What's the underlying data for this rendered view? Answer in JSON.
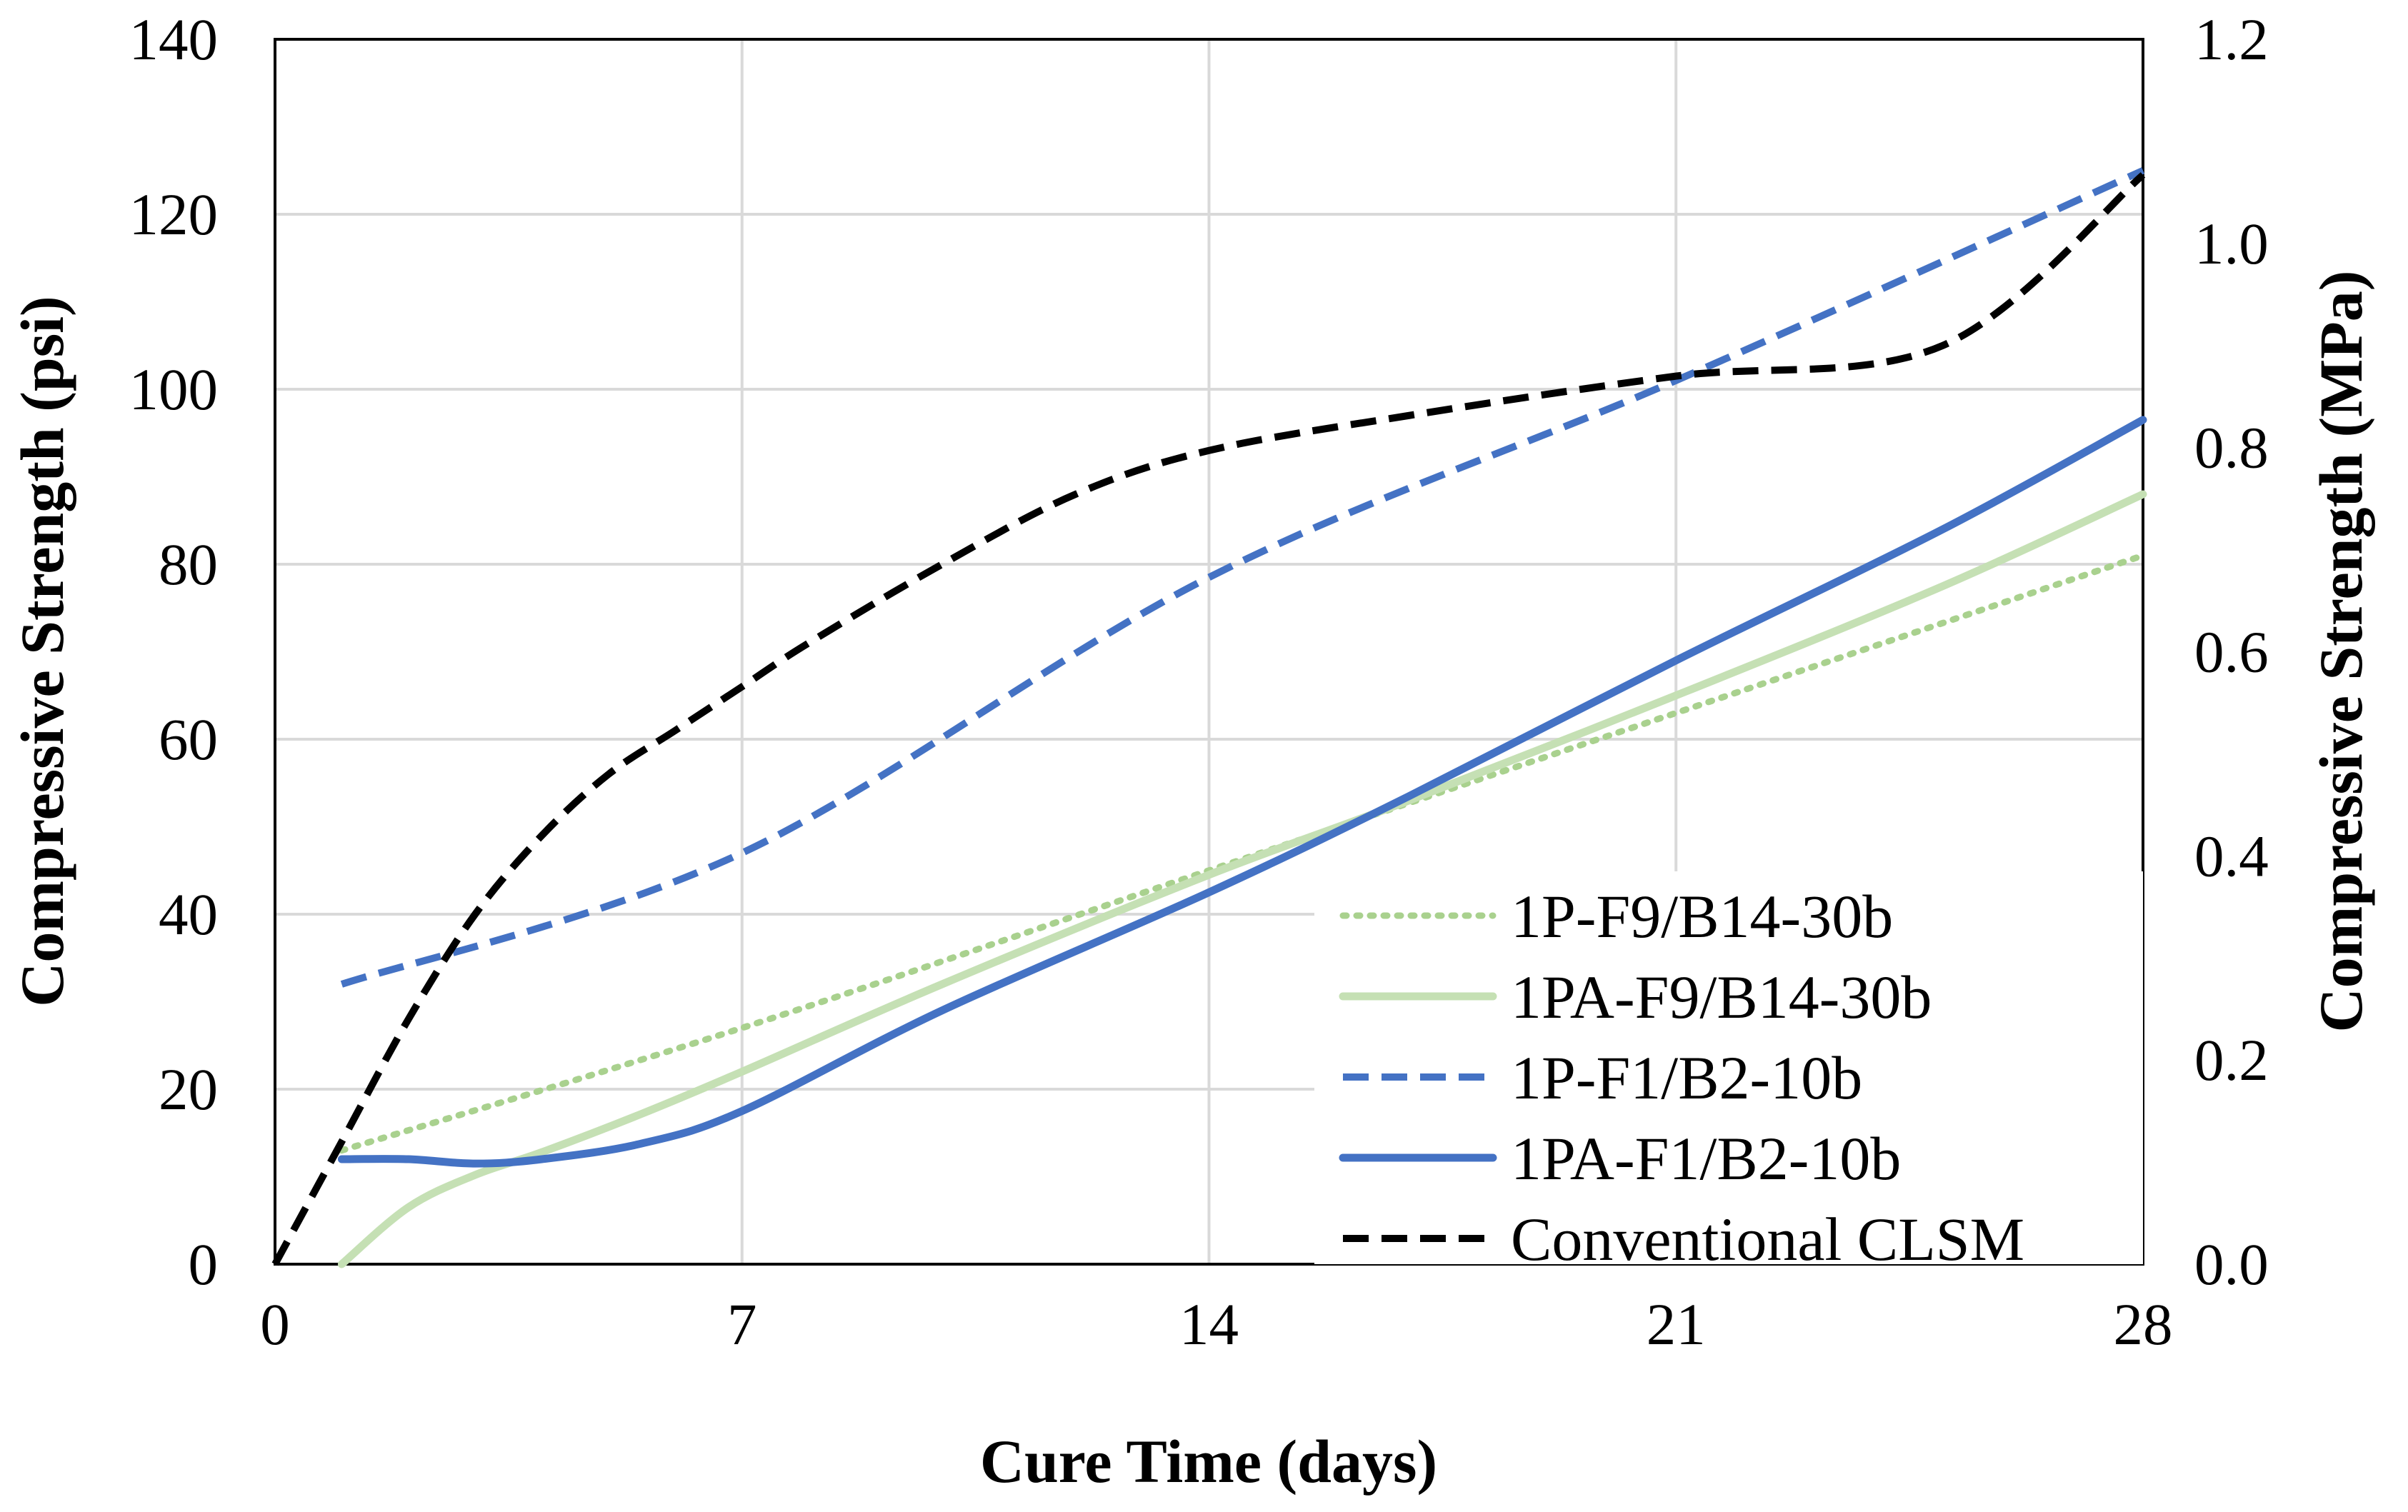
{
  "chart_data": {
    "type": "line",
    "title": "",
    "xlabel": "Cure Time (days)",
    "ylabel": "Compressive Strength (psi)",
    "y2label": "Compressive Strength (MPa)",
    "xlim": [
      0,
      28
    ],
    "ylim": [
      0,
      140
    ],
    "y2lim": [
      0.0,
      1.2
    ],
    "xticks": [
      "0",
      "7",
      "14",
      "21",
      "28"
    ],
    "yticks": [
      "0",
      "20",
      "40",
      "60",
      "80",
      "100",
      "120",
      "140"
    ],
    "y2ticks": [
      "0.0",
      "0.2",
      "0.4",
      "0.6",
      "0.8",
      "1.0",
      "1.2"
    ],
    "grid": true,
    "legend_position": "bottom-right",
    "series": [
      {
        "name": "1P-F9/B14-30b",
        "color": "#A9D18E",
        "style": "dotted",
        "x": [
          1,
          7,
          14,
          21,
          28
        ],
        "y": [
          13,
          27,
          45,
          63,
          81
        ]
      },
      {
        "name": "1PA-F9/B14-30b",
        "color": "#C5E0B4",
        "style": "solid",
        "x": [
          1,
          2,
          3,
          4,
          5.5,
          7,
          10,
          14,
          17,
          21,
          25,
          28
        ],
        "y": [
          0,
          6.5,
          10.2,
          12.8,
          17.2,
          22,
          32,
          44.5,
          53,
          65,
          77.5,
          88
        ]
      },
      {
        "name": "1P-F1/B2-10b",
        "color": "#4472C4",
        "style": "dashed",
        "x": [
          1,
          7,
          14,
          21,
          28
        ],
        "y": [
          32,
          47,
          78.5,
          101,
          125
        ]
      },
      {
        "name": "1PA-F1/B2-10b",
        "color": "#4472C4",
        "style": "solid",
        "x": [
          1,
          2,
          3,
          4,
          5.5,
          7,
          10,
          14,
          17,
          21,
          25,
          28
        ],
        "y": [
          12,
          12,
          11.5,
          12,
          13.8,
          17.5,
          29,
          42.5,
          53.5,
          69,
          84,
          96.5
        ]
      },
      {
        "name": "Conventional CLSM",
        "color": "#000000",
        "style": "dashed",
        "x": [
          0,
          1,
          2,
          3,
          4,
          5,
          6,
          7,
          8,
          10,
          12,
          14,
          17,
          21,
          25,
          28
        ],
        "y": [
          0,
          14,
          28,
          40,
          49,
          56,
          61,
          66,
          71,
          80,
          88,
          93,
          97,
          101.5,
          105,
          124.5
        ]
      }
    ]
  }
}
